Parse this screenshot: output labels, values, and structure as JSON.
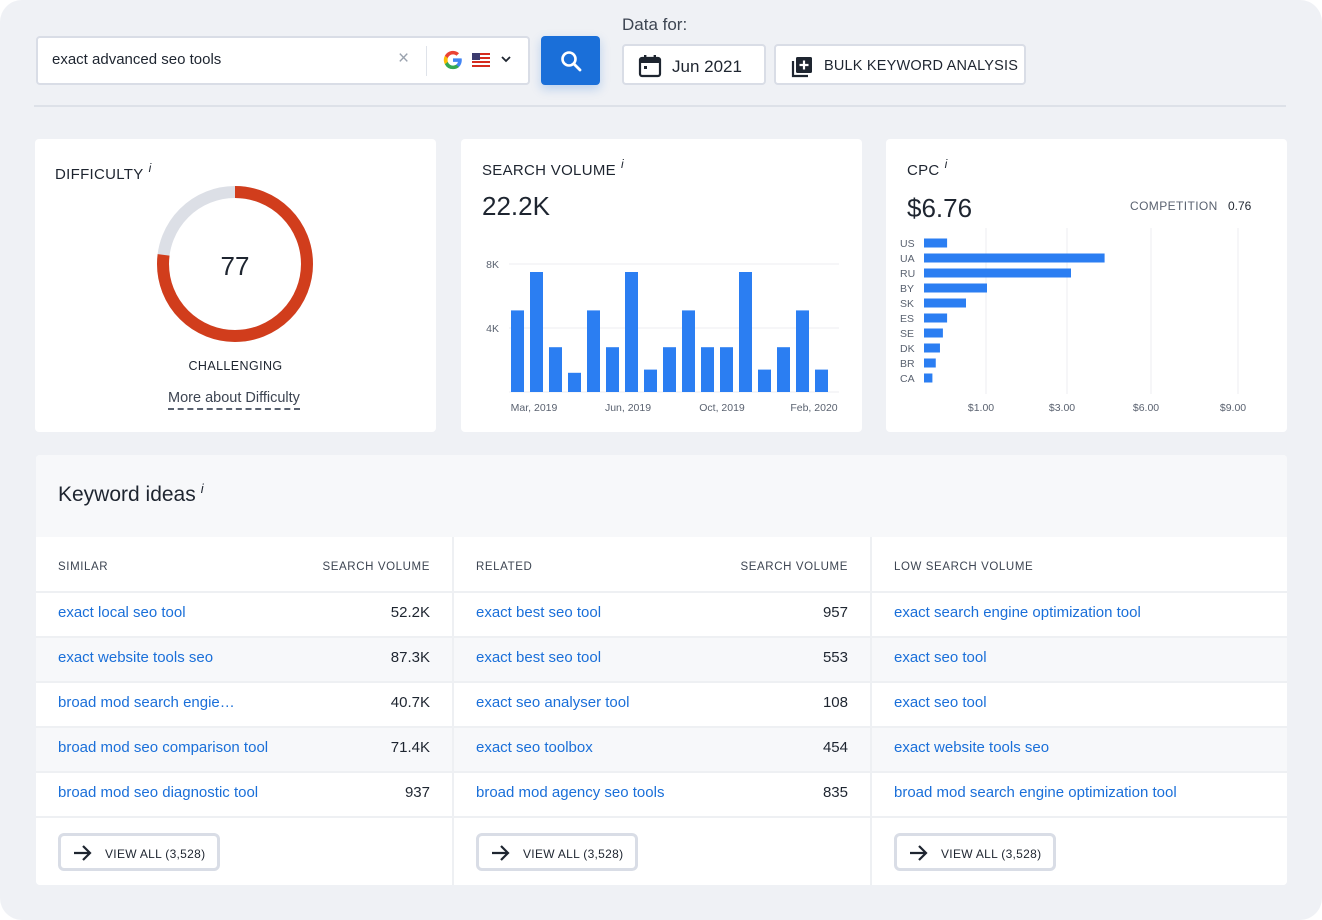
{
  "search": {
    "query": "exact advanced seo tools",
    "clear_symbol": "×"
  },
  "data_for": {
    "label": "Data for:",
    "date": "Jun 2021",
    "bulk_label": "BULK KEYWORD ANALYSIS"
  },
  "difficulty": {
    "title": "DIFFICULTY",
    "info": "i",
    "value": "77",
    "score": 77,
    "max": 100,
    "level": "CHALLENGING",
    "more_link": "More about Difficulty",
    "colors": {
      "fill": "#d13d1c",
      "track": "#dcdfe6"
    }
  },
  "search_volume": {
    "title": "SEARCH VOLUME",
    "info": "i",
    "value": "22.2K",
    "chart_data": {
      "type": "bar",
      "values": [
        5100,
        7500,
        2800,
        1200,
        5100,
        2800,
        7500,
        1400,
        2800,
        5100,
        2800,
        2800,
        7500,
        1400,
        2800,
        5100,
        1400
      ],
      "x_tick_labels": [
        "Mar, 2019",
        "Jun, 2019",
        "Oct, 2019",
        "Feb, 2020"
      ],
      "y_tick_labels": [
        "8K",
        "4K"
      ],
      "ylim": [
        0,
        8000
      ],
      "grid": true,
      "color": "#2b7ef2"
    }
  },
  "cpc": {
    "title": "CPC",
    "info": "i",
    "value": "$6.76",
    "competition_label": "COMPETITION",
    "competition_value": "0.76",
    "chart_data": {
      "type": "bar",
      "orientation": "horizontal",
      "categories": [
        "US",
        "UA",
        "RU",
        "BY",
        "SK",
        "ES",
        "SE",
        "DK",
        "BR",
        "CA"
      ],
      "values": [
        0.55,
        4.3,
        3.5,
        1.5,
        1.0,
        0.55,
        0.45,
        0.38,
        0.28,
        0.2
      ],
      "x_tick_labels": [
        "$1.00",
        "$3.00",
        "$6.00",
        "$9.00"
      ],
      "grid": true,
      "color": "#2b7ef2"
    }
  },
  "keyword_ideas": {
    "title": "Keyword ideas",
    "info": "i",
    "similar": {
      "header": "SIMILAR",
      "volume_header": "SEARCH VOLUME",
      "rows": [
        {
          "keyword": "exact local seo tool",
          "volume": "52.2K"
        },
        {
          "keyword": "exact website tools seo",
          "volume": "87.3K"
        },
        {
          "keyword": "broad mod search engie…",
          "volume": "40.7K"
        },
        {
          "keyword": "broad mod seo comparison tool",
          "volume": "71.4K"
        },
        {
          "keyword": "broad mod seo diagnostic tool",
          "volume": "937"
        }
      ],
      "view_all": "VIEW ALL (3,528)"
    },
    "related": {
      "header": "RELATED",
      "volume_header": "SEARCH VOLUME",
      "rows": [
        {
          "keyword": "exact best seo tool",
          "volume": "957"
        },
        {
          "keyword": "exact best seo tool",
          "volume": "553"
        },
        {
          "keyword": "exact seo analyser tool",
          "volume": "108"
        },
        {
          "keyword": "exact seo toolbox",
          "volume": "454"
        },
        {
          "keyword": "broad mod agency seo tools",
          "volume": "835"
        }
      ],
      "view_all": "VIEW ALL (3,528)"
    },
    "low": {
      "header": "LOW SEARCH VOLUME",
      "rows": [
        {
          "keyword": "exact search engine optimization tool"
        },
        {
          "keyword": "exact seo tool"
        },
        {
          "keyword": "exact seo tool"
        },
        {
          "keyword": "exact website tools seo"
        },
        {
          "keyword": "broad mod search engine optimization tool"
        }
      ],
      "view_all": "VIEW ALL (3,528)"
    }
  },
  "icons": {
    "search": "search-icon",
    "calendar": "calendar-icon",
    "bulk": "bulk-add-icon",
    "google": "google-icon",
    "flag": "us-flag-icon",
    "arrow": "arrow-right-icon"
  }
}
